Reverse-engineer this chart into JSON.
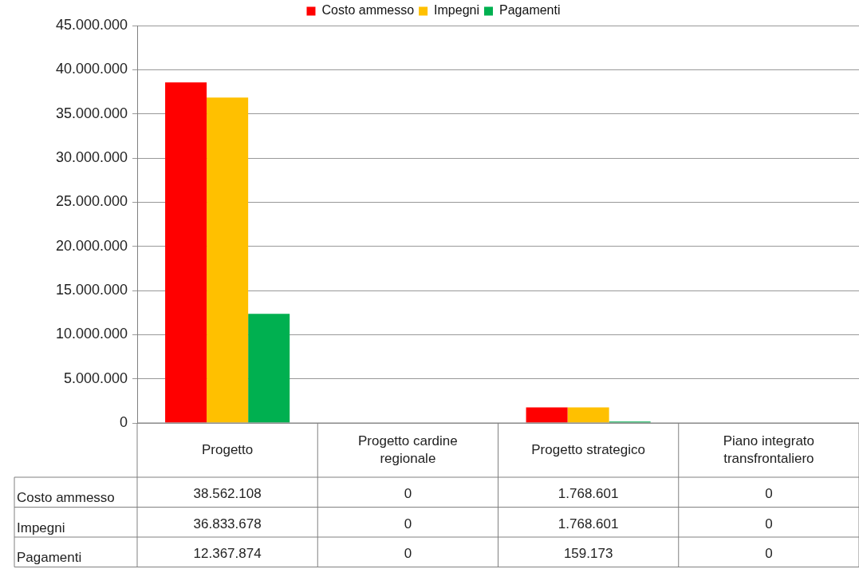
{
  "chart_data": {
    "type": "bar",
    "categories": [
      "Progetto",
      "Progetto cardine regionale",
      "Progetto strategico",
      "Piano integrato transfrontaliero"
    ],
    "series": [
      {
        "name": "Costo ammesso",
        "color": "#ff0000",
        "values": [
          38562108,
          0,
          1768601,
          0
        ],
        "value_labels": [
          "38.562.108",
          "0",
          "1.768.601",
          "0"
        ]
      },
      {
        "name": "Impegni",
        "color": "#ffc000",
        "values": [
          36833678,
          0,
          1768601,
          0
        ],
        "value_labels": [
          "36.833.678",
          "0",
          "1.768.601",
          "0"
        ]
      },
      {
        "name": "Pagamenti",
        "color": "#00b050",
        "values": [
          12367874,
          0,
          159173,
          0
        ],
        "value_labels": [
          "12.367.874",
          "0",
          "159.173",
          "0"
        ]
      }
    ],
    "ylim": [
      0,
      45000000
    ],
    "yticks": [
      {
        "value": 0,
        "label": "0"
      },
      {
        "value": 5000000,
        "label": "5.000.000"
      },
      {
        "value": 10000000,
        "label": "10.000.000"
      },
      {
        "value": 15000000,
        "label": "15.000.000"
      },
      {
        "value": 20000000,
        "label": "20.000.000"
      },
      {
        "value": 25000000,
        "label": "25.000.000"
      },
      {
        "value": 30000000,
        "label": "30.000.000"
      },
      {
        "value": 35000000,
        "label": "35.000.000"
      },
      {
        "value": 40000000,
        "label": "40.000.000"
      },
      {
        "value": 45000000,
        "label": "45.000.000"
      }
    ],
    "grid": "y",
    "legend": "top"
  }
}
